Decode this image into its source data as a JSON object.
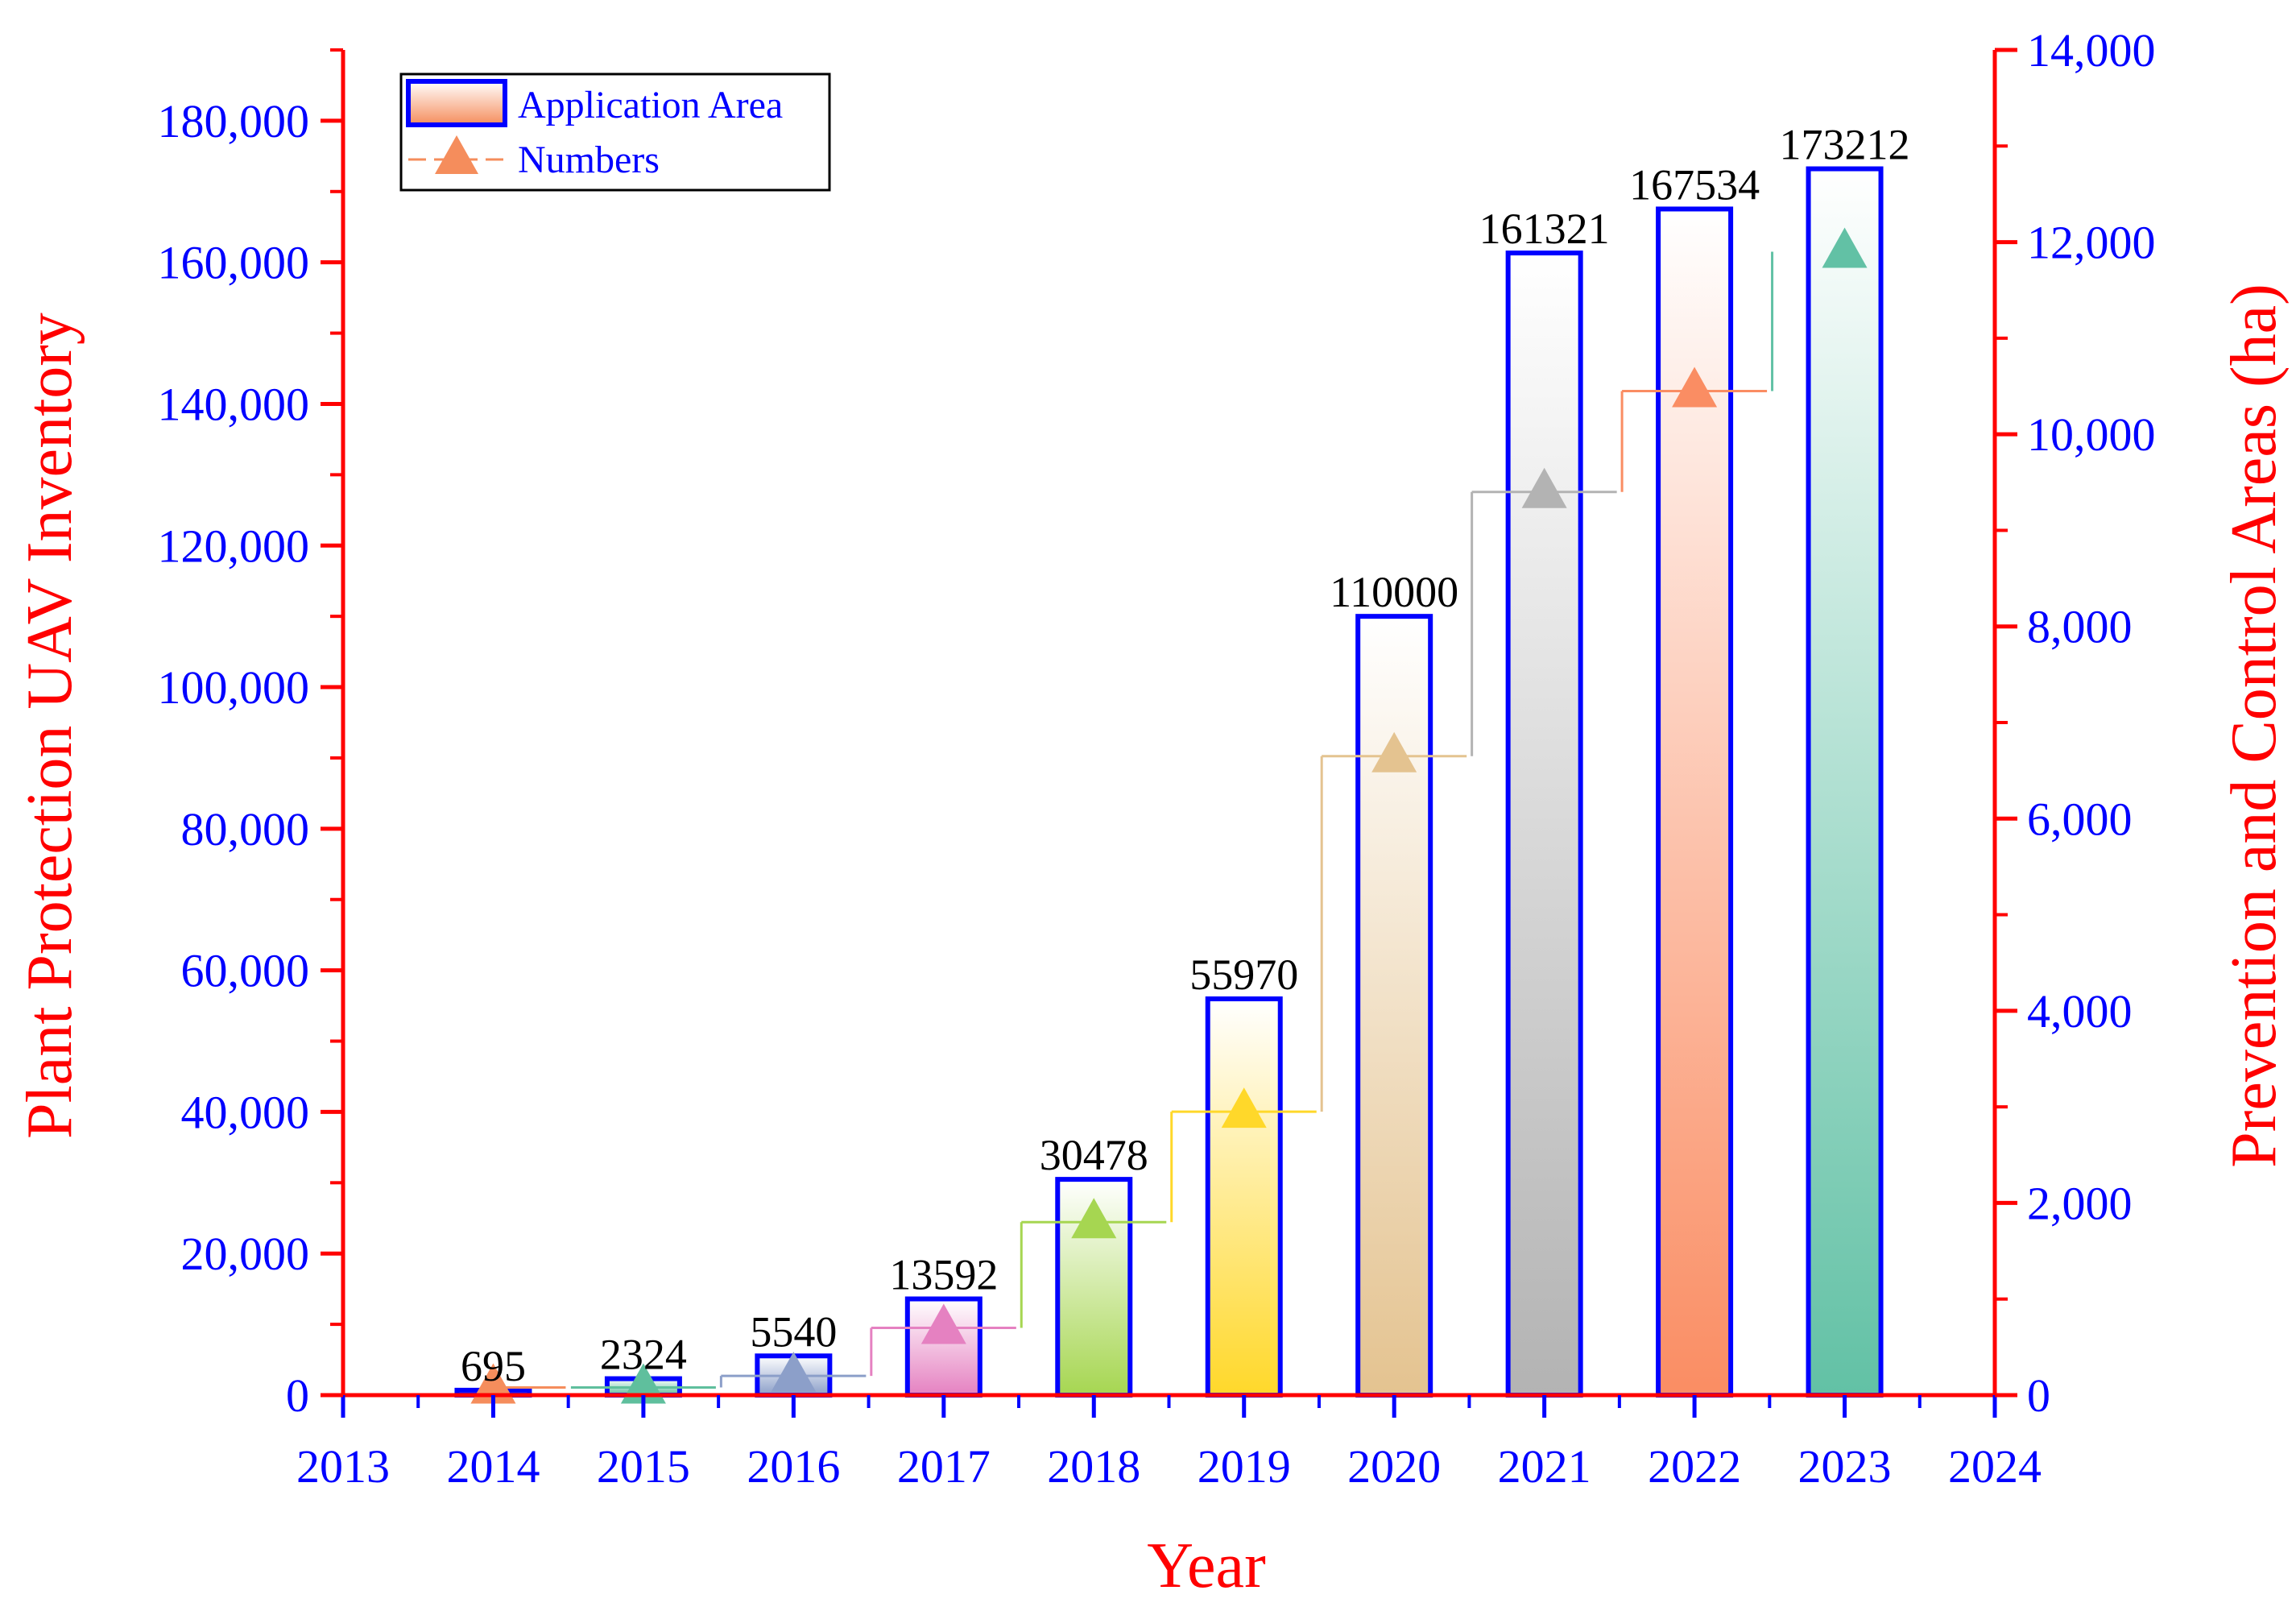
{
  "chart_data": {
    "type": "bar",
    "title": "",
    "xlabel": "Year",
    "ylabel": "Plant Protection UAV Inventory",
    "ylabel_right": "Prevention and Control Areas (ha)",
    "x_ticks": [
      "2013",
      "2014",
      "2015",
      "2016",
      "2017",
      "2018",
      "2019",
      "2020",
      "2021",
      "2022",
      "2023",
      "2024"
    ],
    "xlim": [
      2013,
      2024
    ],
    "ylim_left": [
      0,
      190000
    ],
    "ylim_right": [
      0,
      14000
    ],
    "left_ticks": [
      0,
      20000,
      40000,
      60000,
      80000,
      100000,
      120000,
      140000,
      160000,
      180000
    ],
    "left_tick_labels": [
      "0",
      "20,000",
      "40,000",
      "60,000",
      "80,000",
      "100,000",
      "120,000",
      "140,000",
      "160,000",
      "180,000"
    ],
    "right_ticks": [
      0,
      2000,
      4000,
      6000,
      8000,
      10000,
      12000,
      14000
    ],
    "right_tick_labels": [
      "0",
      "2,000",
      "4,000",
      "6,000",
      "8,000",
      "10,000",
      "12,000",
      "14,000"
    ],
    "categories": [
      "2014",
      "2015",
      "2016",
      "2017",
      "2018",
      "2019",
      "2020",
      "2021",
      "2022",
      "2023"
    ],
    "series": [
      {
        "name": "Application Area",
        "kind": "bar",
        "axis": "left",
        "values": [
          695,
          2324,
          5540,
          13592,
          30478,
          55970,
          110000,
          161321,
          167534,
          173212
        ],
        "labels": [
          "695",
          "2324",
          "5540",
          "13592",
          "30478",
          "55970",
          "110000",
          "161321",
          "167534",
          "173212"
        ]
      },
      {
        "name": "Numbers",
        "kind": "step-line",
        "axis": "right",
        "values": [
          80,
          80,
          200,
          700,
          1800,
          2950,
          6650,
          9400,
          10450,
          11900
        ]
      }
    ],
    "bar_colors": [
      "#f58d5c",
      "#5fbf9d",
      "#8c9fc9",
      "#e581c1",
      "#a6d651",
      "#ffd82a",
      "#e4c390",
      "#b3b3b3",
      "#fa8d63",
      "#62c1a5"
    ],
    "legend_position": "top-left",
    "colors": {
      "bar_border": "#0000ff",
      "left_axis": "#ff0000",
      "right_axis": "#ff0000",
      "tick_text": "#0000ff",
      "axis_title": "#ff0000",
      "legend_line": "#f58d5c"
    }
  }
}
